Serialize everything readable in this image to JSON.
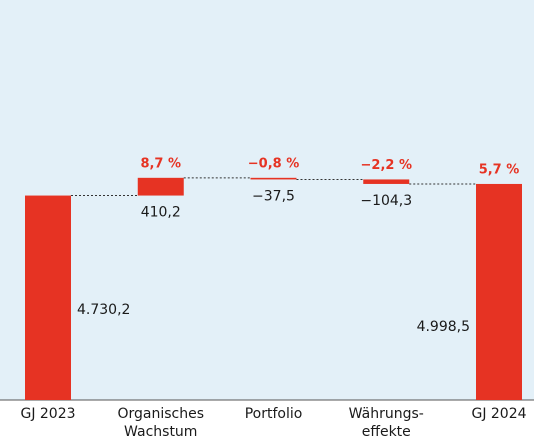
{
  "chart_data": {
    "type": "waterfall",
    "categories": [
      "GJ 2023",
      "Organisches\nWachstum",
      "Portfolio",
      "Währungs-\neffekte",
      "GJ 2024"
    ],
    "values": [
      4730.2,
      410.2,
      -37.5,
      -104.3,
      4998.5
    ],
    "value_labels": [
      "4.730,2",
      "410,2",
      "−37,5",
      "−104,3",
      "4.998,5"
    ],
    "change_labels": [
      null,
      "8,7 %",
      "−0,8 %",
      "−2,2 %",
      "5,7 %"
    ],
    "color": "#e63323",
    "ylim": [
      0,
      9000
    ]
  }
}
